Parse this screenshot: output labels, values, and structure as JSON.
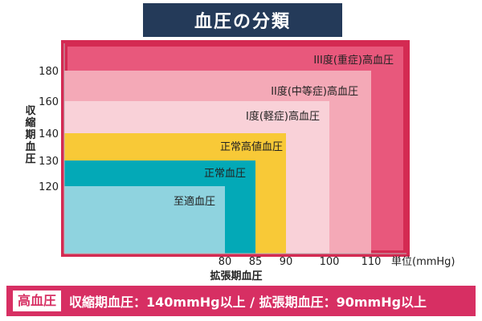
{
  "title": "血圧の分類",
  "footer": {
    "label": "高血圧",
    "text": "収縮期血圧：140mmHg以上 / 拡張期血圧：90mmHg以上"
  },
  "chart_data": {
    "type": "area",
    "xlabel": "拡張期血圧",
    "x_unit_label": "単位(mmHg)",
    "ylabel": "収縮期血圧",
    "x_ticks": [
      80,
      85,
      90,
      100,
      110
    ],
    "y_ticks": [
      120,
      130,
      140,
      160,
      180
    ],
    "regions": [
      {
        "name": "III度(重症)高血圧",
        "x_max": 115,
        "y_max": 190,
        "color": "#e8587c",
        "frame": "#d42a52"
      },
      {
        "name": "II度(中等症)高血圧",
        "x_max": 110,
        "y_max": 180,
        "color": "#f4a9b7"
      },
      {
        "name": "I度(軽症)高血圧",
        "x_max": 100,
        "y_max": 160,
        "color": "#f9d1d8"
      },
      {
        "name": "正常高値血圧",
        "x_max": 90,
        "y_max": 140,
        "color": "#f8c937"
      },
      {
        "name": "正常血圧",
        "x_max": 85,
        "y_max": 130,
        "color": "#03a9b7"
      },
      {
        "name": "至適血圧",
        "x_max": 80,
        "y_max": 120,
        "color": "#8fd3df"
      }
    ]
  }
}
